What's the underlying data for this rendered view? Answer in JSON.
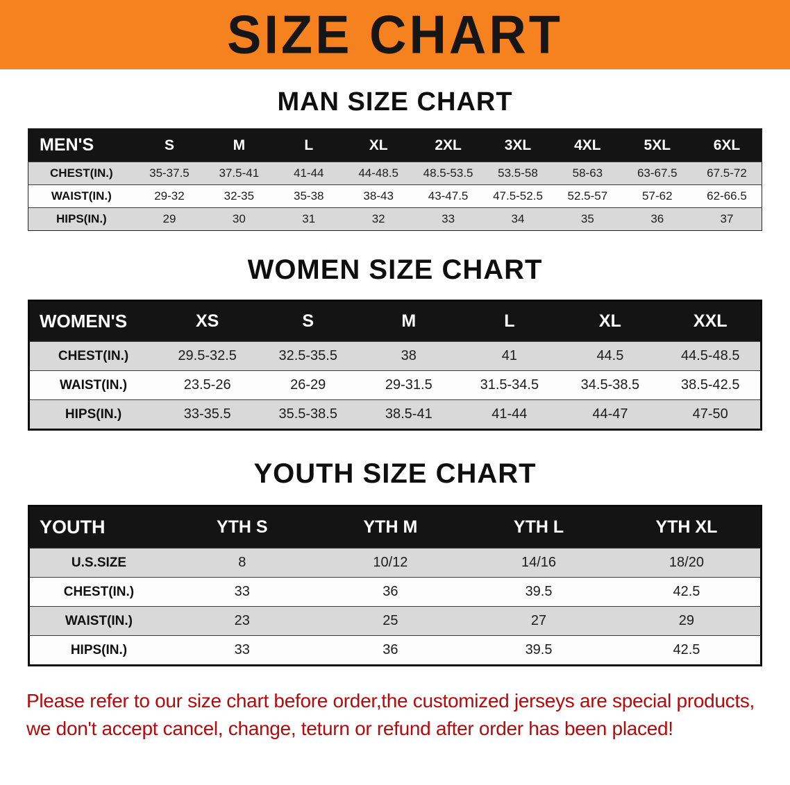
{
  "banner": {
    "title": "SIZE CHART",
    "background_color": "#F5821F",
    "text_color": "#161616"
  },
  "sections": [
    {
      "heading": "MAN SIZE CHART",
      "table": {
        "name": "men",
        "header": [
          "MEN'S",
          "S",
          "M",
          "L",
          "XL",
          "2XL",
          "3XL",
          "4XL",
          "5XL",
          "6XL"
        ],
        "rows": [
          [
            "CHEST(IN.)",
            "35-37.5",
            "37.5-41",
            "41-44",
            "44-48.5",
            "48.5-53.5",
            "53.5-58",
            "58-63",
            "63-67.5",
            "67.5-72"
          ],
          [
            "WAIST(IN.)",
            "29-32",
            "32-35",
            "35-38",
            "38-43",
            "43-47.5",
            "47.5-52.5",
            "52.5-57",
            "57-62",
            "62-66.5"
          ],
          [
            "HIPS(IN.)",
            "29",
            "30",
            "31",
            "32",
            "33",
            "34",
            "35",
            "36",
            "37"
          ]
        ]
      }
    },
    {
      "heading": "WOMEN SIZE CHART",
      "table": {
        "name": "women",
        "header": [
          "WOMEN'S",
          "XS",
          "S",
          "M",
          "L",
          "XL",
          "XXL"
        ],
        "rows": [
          [
            "CHEST(IN.)",
            "29.5-32.5",
            "32.5-35.5",
            "38",
            "41",
            "44.5",
            "44.5-48.5"
          ],
          [
            "WAIST(IN.)",
            "23.5-26",
            "26-29",
            "29-31.5",
            "31.5-34.5",
            "34.5-38.5",
            "38.5-42.5"
          ],
          [
            "HIPS(IN.)",
            "33-35.5",
            "35.5-38.5",
            "38.5-41",
            "41-44",
            "44-47",
            "47-50"
          ]
        ]
      }
    },
    {
      "heading": "YOUTH SIZE CHART",
      "table": {
        "name": "youth",
        "header": [
          "YOUTH",
          "YTH S",
          "YTH M",
          "YTH L",
          "YTH XL"
        ],
        "rows": [
          [
            "U.S.SIZE",
            "8",
            "10/12",
            "14/16",
            "18/20"
          ],
          [
            "CHEST(IN.)",
            "33",
            "36",
            "39.5",
            "42.5"
          ],
          [
            "WAIST(IN.)",
            "23",
            "25",
            "27",
            "29"
          ],
          [
            "HIPS(IN.)",
            "33",
            "36",
            "39.5",
            "42.5"
          ]
        ]
      }
    }
  ],
  "footer": {
    "line1": "Please refer to our size chart before order,the customized jerseys are special products,",
    "line2": "we don't accept cancel, change, teturn or refund after order has been placed!",
    "text_color": "#B20B0B"
  }
}
